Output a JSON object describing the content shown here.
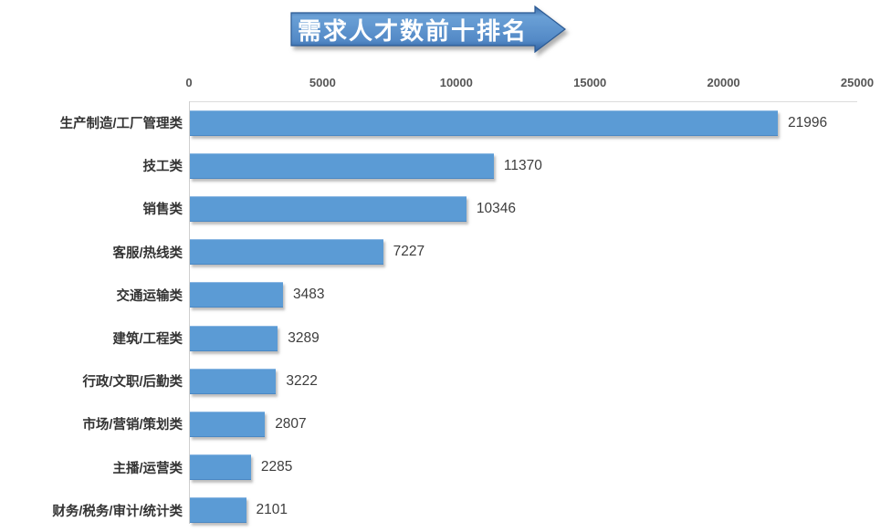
{
  "banner": {
    "title": "需求人才数前十排名"
  },
  "colors": {
    "bar": "#5b9bd5",
    "banner_light": "#6aa0d6",
    "banner_dark": "#2f5f9e",
    "banner_border": "#2b5档",
    "axis_line": "#cfcfcf",
    "text": "#3d3d3d"
  },
  "chart_data": {
    "type": "bar",
    "orientation": "horizontal",
    "title": "需求人才数前十排名",
    "categories": [
      "生产制造/工厂管理类",
      "技工类",
      "销售类",
      "客服/热线类",
      "交通运输类",
      "建筑/工程类",
      "行政/文职/后勤类",
      "市场/营销/策划类",
      "主播/运营类",
      "财务/税务/审计/统计类"
    ],
    "values": [
      21996,
      11370,
      10346,
      7227,
      3483,
      3289,
      3222,
      2807,
      2285,
      2101
    ],
    "value_labels": [
      "21996",
      "11370",
      "10346",
      "7227",
      "3483",
      "3289",
      "3222",
      "2807",
      "2285",
      "2101"
    ],
    "xlabel": "",
    "ylabel": "",
    "xlim": [
      0,
      25000
    ],
    "xticks": [
      0,
      5000,
      10000,
      15000,
      20000,
      25000
    ],
    "xtick_labels": [
      "0",
      "5000",
      "10000",
      "15000",
      "20000",
      "25000"
    ],
    "grid": false,
    "legend": false,
    "axis_position": "top"
  }
}
